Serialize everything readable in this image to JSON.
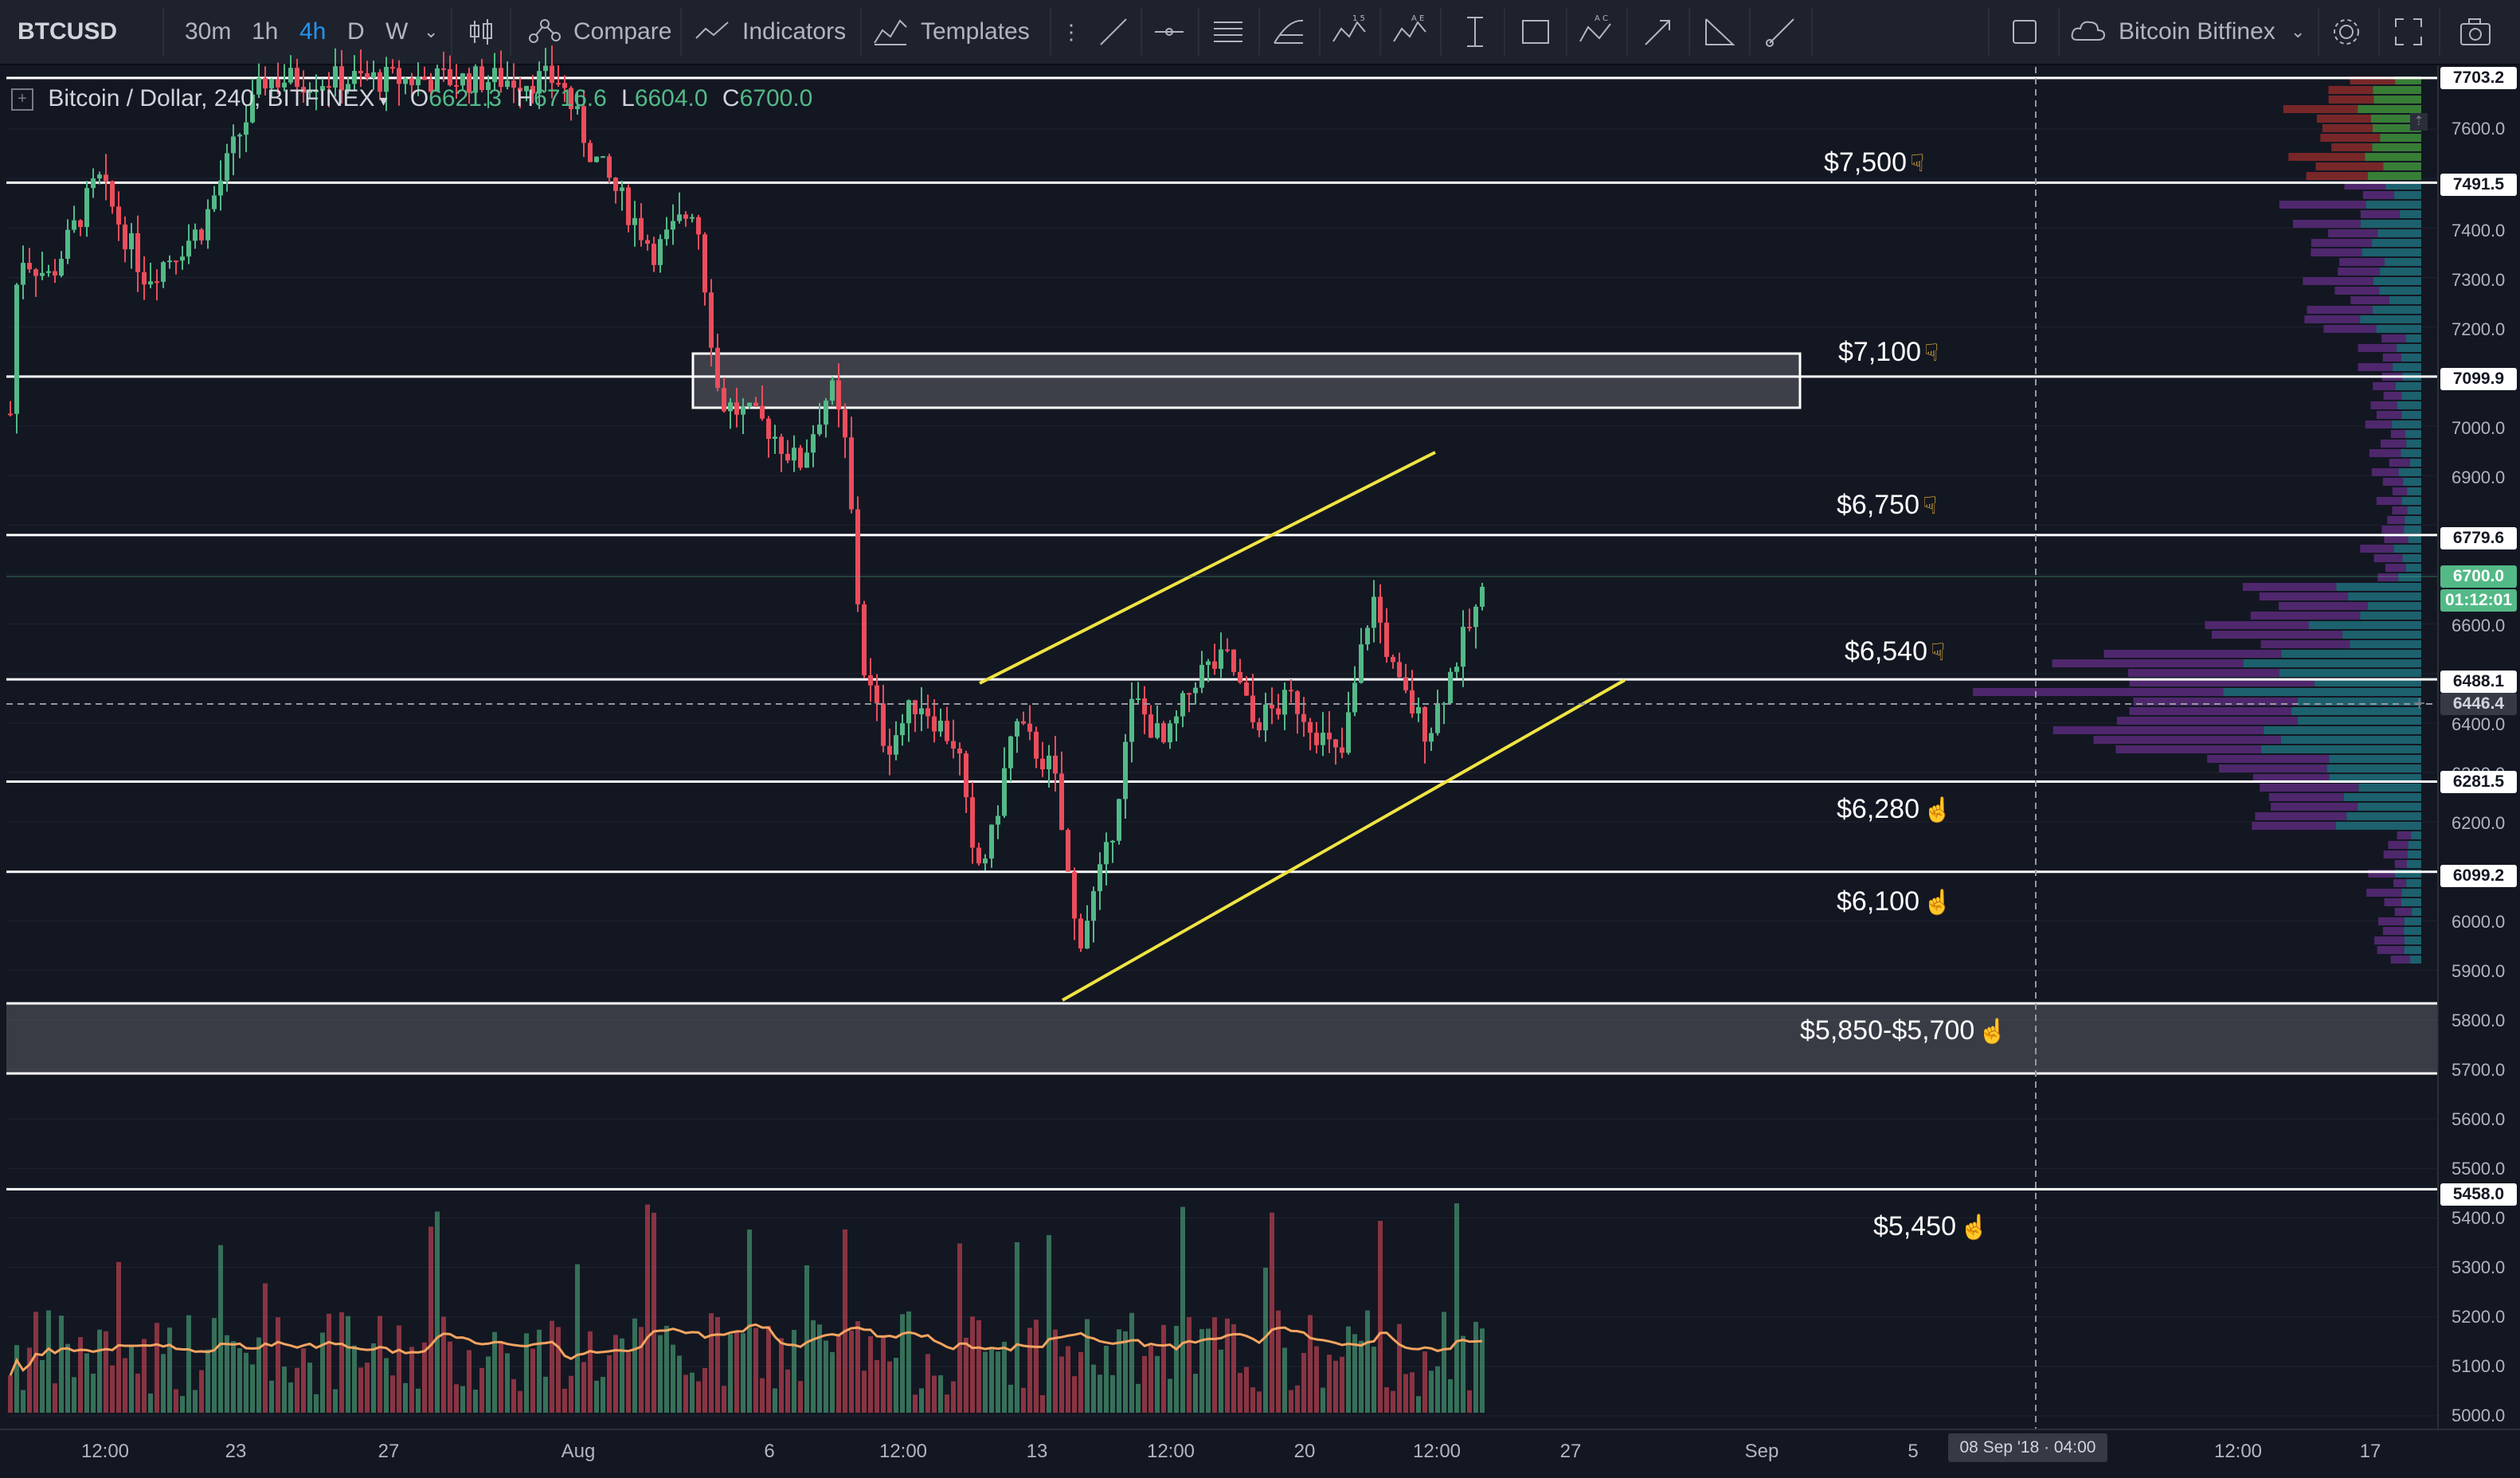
{
  "toolbar": {
    "symbol": "BTCUSD",
    "timeframes": [
      "30m",
      "1h",
      "4h",
      "D",
      "W"
    ],
    "active_timeframe": "4h",
    "compare_label": "Compare",
    "indicators_label": "Indicators",
    "templates_label": "Templates",
    "exchange_label": "Bitcoin Bitfinex"
  },
  "legend": {
    "title": "Bitcoin / Dollar, 240, BITFINEX",
    "open_key": "O",
    "open": "6621.3",
    "high_key": "H",
    "high": "6716.6",
    "low_key": "L",
    "low": "6604.0",
    "close_key": "C",
    "close": "6700.0"
  },
  "price_axis": {
    "ticks": [
      "7600.0",
      "7400.0",
      "7300.0",
      "7200.0",
      "7000.0",
      "6900.0",
      "6600.0",
      "6400.0",
      "6300.0",
      "6200.0",
      "6000.0",
      "5900.0",
      "5800.0",
      "5700.0",
      "5600.0",
      "5500.0",
      "5400.0",
      "5300.0",
      "5200.0",
      "5100.0",
      "5000.0"
    ],
    "badges": [
      {
        "text": "7703.2",
        "kind": "level"
      },
      {
        "text": "7491.5",
        "kind": "level"
      },
      {
        "text": "7099.9",
        "kind": "level"
      },
      {
        "text": "6779.6",
        "kind": "level"
      },
      {
        "text": "6700.0",
        "kind": "last"
      },
      {
        "text": "01:12:01",
        "kind": "timer"
      },
      {
        "text": "6488.1",
        "kind": "level"
      },
      {
        "text": "6446.4",
        "kind": "cross"
      },
      {
        "text": "6281.5",
        "kind": "level"
      },
      {
        "text": "6099.2",
        "kind": "level"
      },
      {
        "text": "5458.0",
        "kind": "level"
      }
    ]
  },
  "time_axis": {
    "ticks": [
      "12:00",
      "23",
      "27",
      "Aug",
      "6",
      "12:00",
      "13",
      "12:00",
      "20",
      "12:00",
      "27",
      "Sep",
      "5",
      "12:00",
      "17"
    ],
    "crosshair_label": "08 Sep '18 · 04:00"
  },
  "levels": [
    {
      "label": "$7,500",
      "hand": "☟"
    },
    {
      "label": "$7,100",
      "hand": "☟"
    },
    {
      "label": "$6,750",
      "hand": "☟"
    },
    {
      "label": "$6,540",
      "hand": "☟"
    },
    {
      "label": "$6,280",
      "hand": "☝"
    },
    {
      "label": "$6,100",
      "hand": "☝"
    },
    {
      "label": "$5,850-$5,700",
      "hand": "☝"
    },
    {
      "label": "$5,450",
      "hand": "☝"
    }
  ],
  "colors": {
    "background": "#131722",
    "up": "#53b987",
    "down": "#eb4d5c",
    "channel": "#f0e442",
    "level_line": "#ffffff",
    "volume_ma": "#f4a460",
    "accent": "#2196f3"
  },
  "icons": [
    "candles-icon",
    "compare-icon",
    "indicators-icon",
    "templates-icon",
    "trend-line-icon",
    "horizontal-ray-icon",
    "parallel-channel-icon",
    "fib-icon",
    "pattern-icon",
    "elliott-icon",
    "measure-icon",
    "rectangle-icon",
    "abcd-icon",
    "arrow-icon",
    "triangle-icon",
    "brush-icon",
    "square-icon",
    "cloud-icon",
    "settings-icon",
    "fullscreen-icon",
    "camera-icon"
  ]
}
